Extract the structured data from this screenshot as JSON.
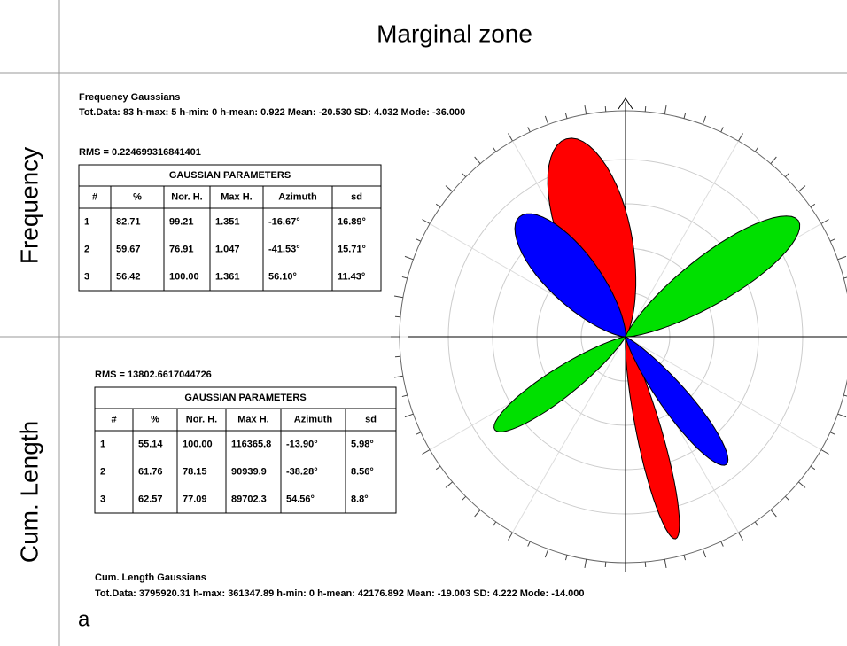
{
  "header": {
    "title": "Marginal zone"
  },
  "colors": [
    "#ff0000",
    "#0000ff",
    "#00e000"
  ],
  "panels": [
    {
      "label": "Frequency",
      "heading": "Frequency Gaussians",
      "stats": "Tot.Data: 83 h-max: 5 h-min: 0 h-mean: 0.922 Mean: -20.530  SD: 4.032  Mode: -36.000",
      "rms": "RMS = 0.224699316841401",
      "table": {
        "title": "GAUSSIAN PARAMETERS",
        "columns": [
          "#",
          "%",
          "Nor. H.",
          "Max H.",
          "Azimuth",
          "sd"
        ],
        "rows": [
          [
            "1",
            "82.71",
            "99.21",
            "1.351",
            "-16.67°",
            "16.89°"
          ],
          [
            "2",
            "59.67",
            "76.91",
            "1.047",
            "-41.53°",
            "15.71°"
          ],
          [
            "3",
            "56.42",
            "100.00",
            "1.361",
            "56.10°",
            "11.43°"
          ]
        ]
      }
    },
    {
      "label": "Cum. Length",
      "heading": "Cum. Length Gaussians",
      "stats": "Tot.Data: 3795920.31 h-max: 361347.89 h-min: 0 h-mean: 42176.892 Mean: -19.003  SD: 4.222  Mode: -14.000",
      "rms": "RMS = 13802.6617044726",
      "table": {
        "title": "GAUSSIAN PARAMETERS",
        "columns": [
          "#",
          "%",
          "Nor. H.",
          "Max H.",
          "Azimuth",
          "sd"
        ],
        "rows": [
          [
            "1",
            "55.14",
            "100.00",
            "116365.8",
            "-13.90°",
            "5.98°"
          ],
          [
            "2",
            "61.76",
            "78.15",
            "90939.9",
            "-38.28°",
            "8.56°"
          ],
          [
            "3",
            "62.57",
            "77.09",
            "89702.3",
            "54.56°",
            "8.8°"
          ]
        ]
      }
    }
  ],
  "figure_label": "a"
}
